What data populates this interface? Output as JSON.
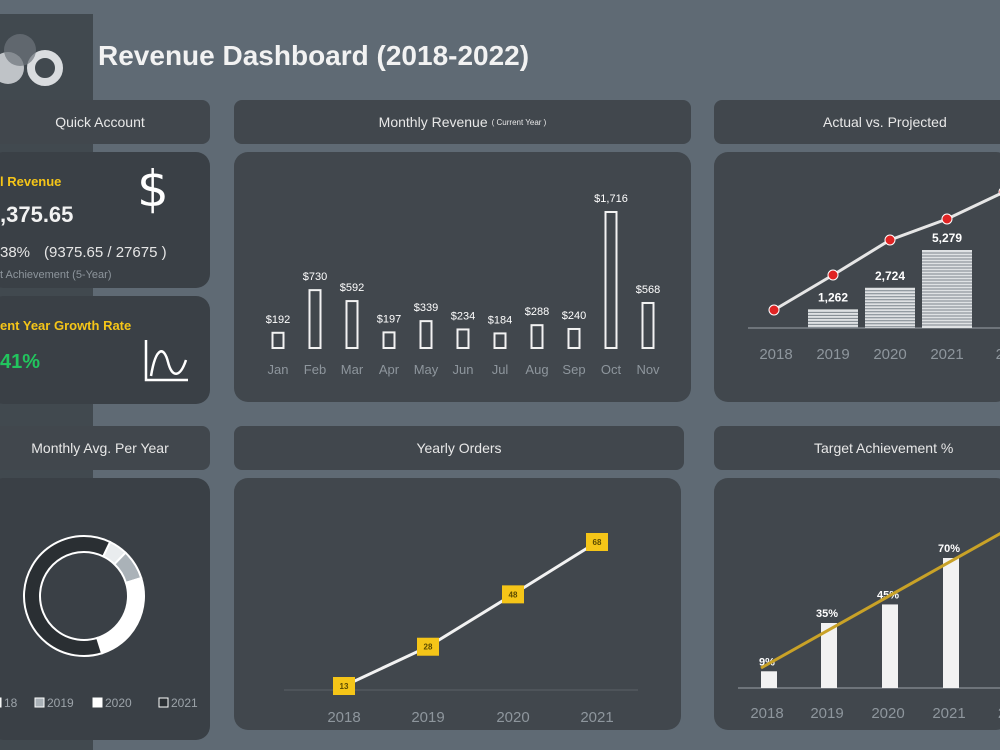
{
  "app": {
    "title": "Revenue Dashboard (2018-2022)"
  },
  "logo": {
    "icon": "circle-logo"
  },
  "sections": {
    "quick_account": "Quick Account",
    "monthly_revenue": "Monthly Revenue",
    "monthly_revenue_note": "( Current Year )",
    "actual_vs_projected": "Actual vs. Projected",
    "monthly_avg": "Monthly Avg. Per Year",
    "yearly_orders": "Yearly Orders",
    "target_achievement": "Target Achievement %"
  },
  "kpi_revenue": {
    "label": "l Revenue",
    "value": ",375.65",
    "percent": "38%",
    "ratio": "(9375.65 / 27675 )",
    "sub": "t Achievement (5-Year)",
    "icon": "dollar-icon"
  },
  "kpi_growth": {
    "label": "ent Year Growth Rate",
    "value": "41%",
    "icon": "growth-curve-icon"
  },
  "colors": {
    "accent_yellow": "#f5c518",
    "growth_green": "#22c55e",
    "marker_red": "#e02424",
    "bar_white": "#f2f2f2"
  },
  "chart_data": [
    {
      "id": "monthly_revenue",
      "type": "bar",
      "categories": [
        "Jan",
        "Feb",
        "Mar",
        "Apr",
        "May",
        "Jun",
        "Jul",
        "Aug",
        "Sep",
        "Oct",
        "Nov"
      ],
      "values": [
        192,
        730,
        592,
        197,
        339,
        234,
        184,
        288,
        240,
        1716,
        568
      ],
      "labels": [
        "$192",
        "$730",
        "$592",
        "$197",
        "$339",
        "$234",
        "$184",
        "$288",
        "$240",
        "$1,716",
        "$568"
      ]
    },
    {
      "id": "actual_vs_projected",
      "type": "bar",
      "categories": [
        "2018",
        "2019",
        "2020",
        "2021",
        "20"
      ],
      "values": [
        null,
        1262,
        2724,
        5279,
        null
      ],
      "labels": [
        "",
        "1,262",
        "2,724",
        "5,279",
        ""
      ],
      "series": [
        {
          "kind": "line",
          "values": [
            null,
            null,
            null,
            null,
            null
          ],
          "markers": "red"
        }
      ]
    },
    {
      "id": "monthly_avg",
      "type": "pie",
      "legend": [
        "18",
        "2019",
        "2020",
        "2021"
      ],
      "slices": [
        0.05,
        0.08,
        0.25,
        0.62
      ]
    },
    {
      "id": "yearly_orders",
      "type": "line",
      "categories": [
        "2018",
        "2019",
        "2020",
        "2021"
      ],
      "values": [
        13,
        28,
        48,
        68
      ],
      "labels": [
        "13",
        "28",
        "48",
        "68"
      ]
    },
    {
      "id": "target_achievement",
      "type": "bar",
      "categories": [
        "2018",
        "2019",
        "2020",
        "2021",
        "2"
      ],
      "values": [
        9,
        35,
        45,
        70,
        null
      ],
      "labels": [
        "9%",
        "35%",
        "45%",
        "70%",
        ""
      ]
    }
  ]
}
